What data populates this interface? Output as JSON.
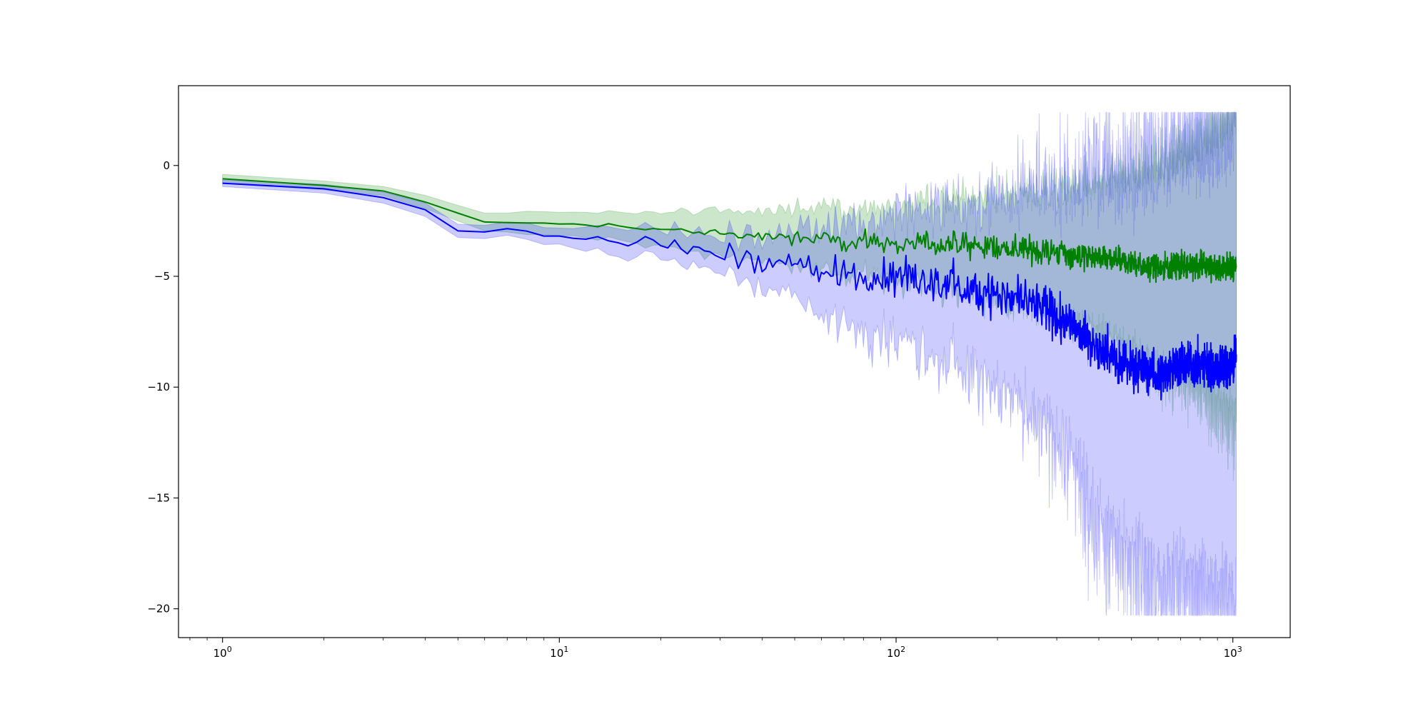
{
  "chart_data": {
    "type": "line",
    "title": "",
    "xlabel": "",
    "ylabel": "",
    "xscale": "log",
    "xlim": [
      0.74,
      1480
    ],
    "ylim": [
      -21.3,
      3.6
    ],
    "grid": false,
    "legend": "none",
    "x_ticks": [
      {
        "base": "10",
        "exp": "0",
        "value": 1
      },
      {
        "base": "10",
        "exp": "1",
        "value": 10
      },
      {
        "base": "10",
        "exp": "2",
        "value": 100
      },
      {
        "base": "10",
        "exp": "3",
        "value": 1000
      }
    ],
    "y_ticks": [
      {
        "label": "0",
        "value": 0
      },
      {
        "label": "−5",
        "value": -5
      },
      {
        "label": "−10",
        "value": -10
      },
      {
        "label": "−15",
        "value": -15
      },
      {
        "label": "−20",
        "value": -20
      }
    ],
    "series": [
      {
        "color": "#008000",
        "band_color": "#008000",
        "points": [
          [
            1,
            -0.6,
            0.2
          ],
          [
            2,
            -0.9,
            0.2
          ],
          [
            3,
            -1.15,
            0.2
          ],
          [
            4,
            -1.65,
            0.3
          ],
          [
            5,
            -2.15,
            0.35
          ],
          [
            6,
            -2.55,
            0.4
          ],
          [
            8,
            -2.6,
            0.45
          ],
          [
            10,
            -2.65,
            0.5
          ],
          [
            15,
            -2.75,
            0.6
          ],
          [
            20,
            -2.85,
            0.7
          ],
          [
            30,
            -3.05,
            0.9
          ],
          [
            50,
            -3.3,
            1.1
          ],
          [
            80,
            -3.45,
            1.3
          ],
          [
            100,
            -3.5,
            1.4
          ],
          [
            150,
            -3.6,
            1.7
          ],
          [
            200,
            -3.7,
            2.0
          ],
          [
            300,
            -3.9,
            2.4
          ],
          [
            400,
            -4.2,
            2.9
          ],
          [
            500,
            -4.4,
            3.4
          ],
          [
            600,
            -4.6,
            3.9
          ],
          [
            700,
            -4.5,
            4.3
          ],
          [
            800,
            -4.5,
            4.8
          ],
          [
            900,
            -4.6,
            5.3
          ],
          [
            1000,
            -4.6,
            5.9
          ],
          [
            1024,
            -4.4,
            6.0
          ]
        ],
        "noise": 0.5,
        "band_noise": 1.2
      },
      {
        "color": "#0000ff",
        "band_color": "#0000ff",
        "points": [
          [
            1,
            -0.8,
            0.15
          ],
          [
            2,
            -1.05,
            0.2
          ],
          [
            3,
            -1.45,
            0.25
          ],
          [
            4,
            -2.0,
            0.3
          ],
          [
            5,
            -2.95,
            0.3
          ],
          [
            6,
            -3.0,
            0.3
          ],
          [
            7,
            -2.85,
            0.3
          ],
          [
            10,
            -3.2,
            0.35
          ],
          [
            15,
            -3.4,
            0.45
          ],
          [
            20,
            -3.55,
            0.55
          ],
          [
            30,
            -3.95,
            0.7
          ],
          [
            40,
            -4.3,
            0.9
          ],
          [
            50,
            -4.5,
            1.2
          ],
          [
            60,
            -4.8,
            1.6
          ],
          [
            80,
            -5.0,
            1.8
          ],
          [
            100,
            -5.1,
            2.2
          ],
          [
            130,
            -5.4,
            2.5
          ],
          [
            170,
            -5.5,
            2.9
          ],
          [
            200,
            -5.8,
            3.3
          ],
          [
            250,
            -6.2,
            3.8
          ],
          [
            300,
            -6.9,
            4.4
          ],
          [
            350,
            -7.4,
            5.2
          ],
          [
            400,
            -8.2,
            6.0
          ],
          [
            500,
            -9.0,
            7.0
          ],
          [
            600,
            -9.5,
            7.8
          ],
          [
            700,
            -8.9,
            8.0
          ],
          [
            800,
            -9.0,
            8.3
          ],
          [
            900,
            -9.2,
            8.6
          ],
          [
            1000,
            -9.0,
            9.0
          ],
          [
            1024,
            -8.5,
            9.0
          ]
        ],
        "noise": 0.9,
        "band_noise": 2.0
      }
    ]
  }
}
